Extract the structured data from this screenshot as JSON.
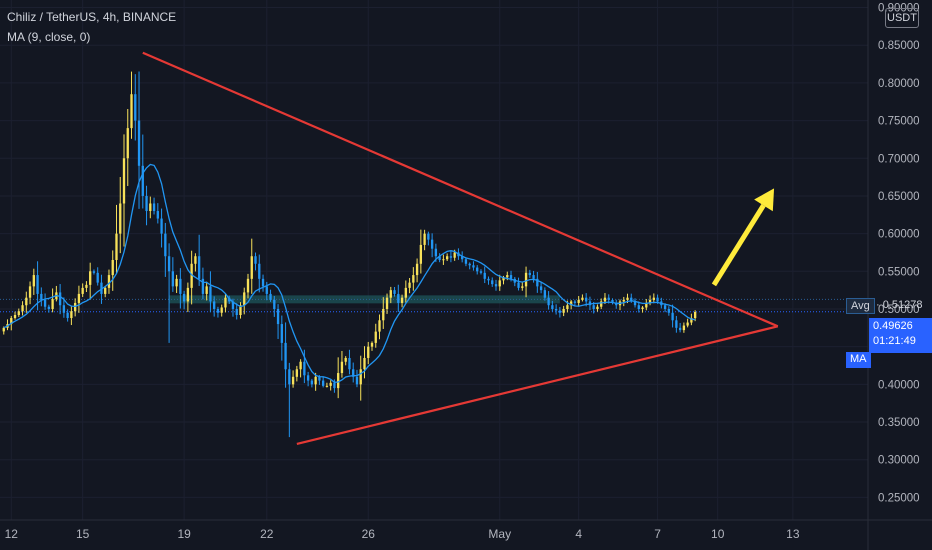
{
  "legend": {
    "symbol_line": "Chiliz / TetherUS, 4h, BINANCE",
    "indicator_line": "MA (9, close, 0)"
  },
  "price_axis": {
    "unit": "USDT",
    "avg_key": "Avg",
    "avg_value": "0.51278",
    "last_price": "0.49626",
    "countdown": "01:21:49",
    "ma_label": "MA"
  },
  "colors": {
    "background": "#131722",
    "up_candle": "#f7e15a",
    "down_candle": "#2196f3",
    "ma_line": "#2196f3",
    "trendline": "#e53935",
    "arrow": "#ffeb3b",
    "avg_band": "#1e5659"
  },
  "chart_data": {
    "type": "candlestick",
    "symbol": "Chiliz / TetherUS",
    "interval": "4h",
    "exchange": "BINANCE",
    "indicator": "MA (9, close, 0)",
    "ylim": [
      0.22,
      0.91
    ],
    "y_ticks": [
      "0.90000",
      "0.85000",
      "0.80000",
      "0.75000",
      "0.70000",
      "0.65000",
      "0.60000",
      "0.55000",
      "0.50000",
      "0.45000",
      "0.40000",
      "0.35000",
      "0.30000",
      "0.25000"
    ],
    "x_ticks": [
      "12",
      "15",
      "19",
      "22",
      "26",
      "May",
      "4",
      "7",
      "10",
      "13"
    ],
    "x_tick_index": [
      2,
      21,
      48,
      70,
      97,
      132,
      153,
      174,
      190,
      210
    ],
    "x_range": [
      -1,
      230
    ],
    "avg_price": 0.51278,
    "last_price": 0.49626,
    "close_series": [
      0.475,
      0.48,
      0.488,
      0.492,
      0.497,
      0.505,
      0.515,
      0.53,
      0.545,
      0.52,
      0.512,
      0.503,
      0.5,
      0.513,
      0.522,
      0.505,
      0.495,
      0.488,
      0.497,
      0.508,
      0.52,
      0.528,
      0.532,
      0.55,
      0.548,
      0.535,
      0.52,
      0.528,
      0.545,
      0.565,
      0.6,
      0.64,
      0.7,
      0.74,
      0.785,
      0.75,
      0.69,
      0.65,
      0.63,
      0.64,
      0.63,
      0.62,
      0.6,
      0.57,
      0.55,
      0.53,
      0.54,
      0.52,
      0.51,
      0.528,
      0.56,
      0.57,
      0.54,
      0.52,
      0.53,
      0.51,
      0.5,
      0.495,
      0.502,
      0.515,
      0.51,
      0.5,
      0.492,
      0.505,
      0.522,
      0.54,
      0.57,
      0.56,
      0.54,
      0.53,
      0.52,
      0.512,
      0.5,
      0.48,
      0.455,
      0.42,
      0.4,
      0.41,
      0.42,
      0.43,
      0.412,
      0.405,
      0.4,
      0.41,
      0.405,
      0.398,
      0.398,
      0.402,
      0.395,
      0.415,
      0.43,
      0.435,
      0.42,
      0.41,
      0.4,
      0.42,
      0.435,
      0.45,
      0.455,
      0.47,
      0.485,
      0.5,
      0.515,
      0.525,
      0.52,
      0.508,
      0.515,
      0.528,
      0.535,
      0.545,
      0.56,
      0.585,
      0.6,
      0.592,
      0.58,
      0.57,
      0.565,
      0.566,
      0.57,
      0.568,
      0.575,
      0.57,
      0.566,
      0.56,
      0.558,
      0.555,
      0.55,
      0.548,
      0.54,
      0.538,
      0.533,
      0.53,
      0.538,
      0.542,
      0.545,
      0.54,
      0.535,
      0.528,
      0.53,
      0.548,
      0.545,
      0.54,
      0.53,
      0.525,
      0.515,
      0.505,
      0.5,
      0.498,
      0.495,
      0.5,
      0.505,
      0.51,
      0.508,
      0.512,
      0.515,
      0.51,
      0.505,
      0.5,
      0.503,
      0.51,
      0.515,
      0.512,
      0.508,
      0.505,
      0.51,
      0.512,
      0.515,
      0.51,
      0.505,
      0.5,
      0.502,
      0.508,
      0.512,
      0.515,
      0.51,
      0.505,
      0.5,
      0.495,
      0.485,
      0.475,
      0.472,
      0.478,
      0.482,
      0.488,
      0.496
    ],
    "annotations": [
      {
        "type": "trendline",
        "from": [
          37,
          0.84
        ],
        "to": [
          206,
          0.477
        ]
      },
      {
        "type": "trendline",
        "from": [
          78,
          0.321
        ],
        "to": [
          206,
          0.477
        ]
      },
      {
        "type": "arrow",
        "from": [
          189,
          0.532
        ],
        "to": [
          205,
          0.66
        ]
      },
      {
        "type": "band",
        "value": 0.51278
      }
    ]
  }
}
